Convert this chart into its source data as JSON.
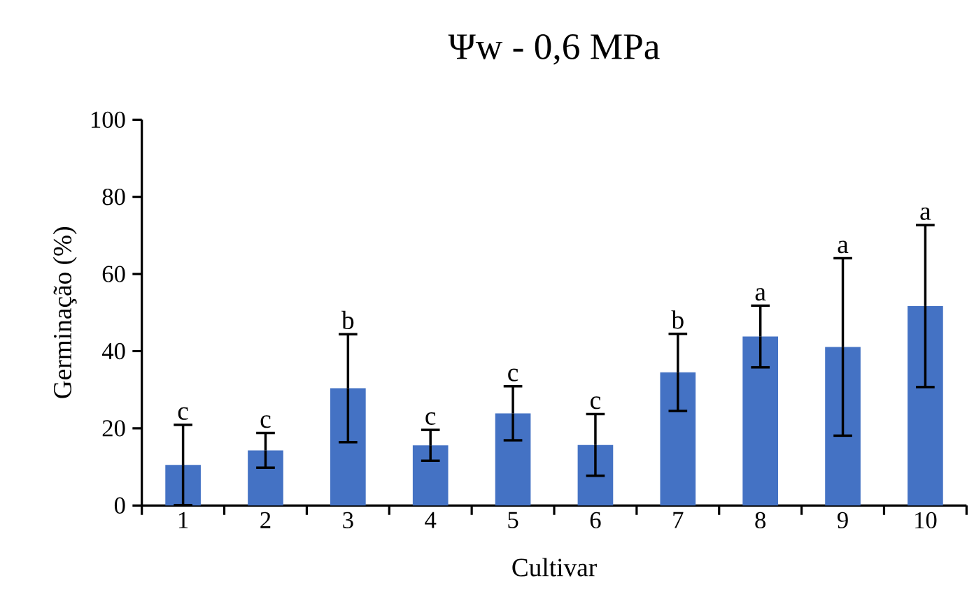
{
  "chart_data": {
    "type": "bar",
    "title": "Ψw - 0,6 MPa",
    "xlabel": "Cultivar",
    "ylabel": "Germinação (%)",
    "categories": [
      "1",
      "2",
      "3",
      "4",
      "5",
      "6",
      "7",
      "8",
      "9",
      "10"
    ],
    "values": [
      10.5,
      14.3,
      30.4,
      15.6,
      23.9,
      15.7,
      34.5,
      43.8,
      41.1,
      51.7
    ],
    "errors": [
      10.4,
      4.5,
      14,
      4,
      7,
      8,
      10,
      8,
      23,
      21
    ],
    "color": "#4472c4",
    "ylim": [
      0,
      100
    ],
    "yticks": [
      0,
      20,
      40,
      60,
      80,
      100
    ],
    "grid": false,
    "annotations": [
      {
        "text": "c",
        "x": "1",
        "y": 20.9
      },
      {
        "text": "c",
        "x": "2",
        "y": 18.8
      },
      {
        "text": "b",
        "x": "3",
        "y": 44.4
      },
      {
        "text": "c",
        "x": "4",
        "y": 19.6
      },
      {
        "text": "c",
        "x": "5",
        "y": 30.9
      },
      {
        "text": "c",
        "x": "6",
        "y": 23.7
      },
      {
        "text": "b",
        "x": "7",
        "y": 44.5
      },
      {
        "text": "a",
        "x": "8",
        "y": 51.8
      },
      {
        "text": "a",
        "x": "9",
        "y": 64.1
      },
      {
        "text": "a",
        "x": "10",
        "y": 72.7
      }
    ]
  }
}
